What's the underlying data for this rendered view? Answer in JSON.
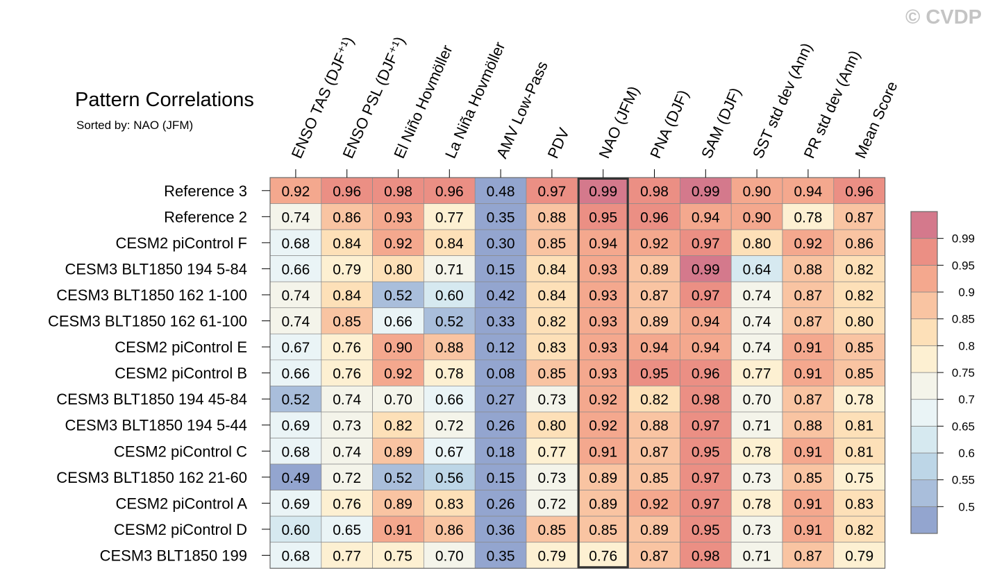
{
  "watermark": "© CVDP",
  "chart_data": {
    "type": "heatmap",
    "title": "Pattern Correlations",
    "subtitle": "Sorted by: NAO (JFM)",
    "highlight_column": "NAO (JFM)",
    "columns": [
      "ENSO TAS (DJF⁺¹)",
      "ENSO PSL (DJF⁺¹)",
      "El Niño Hovmöller",
      "La Niña Hovmöller",
      "AMV Low-Pass",
      "PDV",
      "NAO (JFM)",
      "PNA (DJF)",
      "SAM (DJF)",
      "SST std dev (Ann)",
      "PR std dev (Ann)",
      "Mean Score"
    ],
    "rows": [
      {
        "name": "Reference 3",
        "values": [
          "0.92",
          "0.96",
          "0.98",
          "0.96",
          "0.48",
          "0.97",
          "0.99",
          "0.98",
          "0.99",
          "0.90",
          "0.94",
          "0.96"
        ]
      },
      {
        "name": "Reference 2",
        "values": [
          "0.74",
          "0.86",
          "0.93",
          "0.77",
          "0.35",
          "0.88",
          "0.95",
          "0.96",
          "0.94",
          "0.90",
          "0.78",
          "0.87"
        ]
      },
      {
        "name": "CESM2 piControl F",
        "values": [
          "0.68",
          "0.84",
          "0.92",
          "0.84",
          "0.30",
          "0.85",
          "0.94",
          "0.92",
          "0.97",
          "0.80",
          "0.92",
          "0.86"
        ]
      },
      {
        "name": "CESM3 BLT1850 194 5-84",
        "values": [
          "0.66",
          "0.79",
          "0.80",
          "0.71",
          "0.15",
          "0.84",
          "0.93",
          "0.89",
          "0.99",
          "0.64",
          "0.88",
          "0.82"
        ]
      },
      {
        "name": "CESM3 BLT1850 162 1-100",
        "values": [
          "0.74",
          "0.84",
          "0.52",
          "0.60",
          "0.42",
          "0.84",
          "0.93",
          "0.87",
          "0.97",
          "0.74",
          "0.87",
          "0.82"
        ]
      },
      {
        "name": "CESM3 BLT1850 162 61-100",
        "values": [
          "0.74",
          "0.85",
          "0.66",
          "0.52",
          "0.33",
          "0.82",
          "0.93",
          "0.89",
          "0.94",
          "0.74",
          "0.87",
          "0.80"
        ]
      },
      {
        "name": "CESM2 piControl E",
        "values": [
          "0.67",
          "0.76",
          "0.90",
          "0.88",
          "0.12",
          "0.83",
          "0.93",
          "0.94",
          "0.94",
          "0.74",
          "0.91",
          "0.85"
        ]
      },
      {
        "name": "CESM2 piControl B",
        "values": [
          "0.66",
          "0.76",
          "0.92",
          "0.78",
          "0.08",
          "0.85",
          "0.93",
          "0.95",
          "0.96",
          "0.77",
          "0.91",
          "0.85"
        ]
      },
      {
        "name": "CESM3 BLT1850 194 45-84",
        "values": [
          "0.52",
          "0.74",
          "0.70",
          "0.66",
          "0.27",
          "0.73",
          "0.92",
          "0.82",
          "0.98",
          "0.70",
          "0.87",
          "0.78"
        ]
      },
      {
        "name": "CESM3 BLT1850 194 5-44",
        "values": [
          "0.69",
          "0.73",
          "0.82",
          "0.72",
          "0.26",
          "0.80",
          "0.92",
          "0.88",
          "0.97",
          "0.71",
          "0.88",
          "0.81"
        ]
      },
      {
        "name": "CESM2 piControl C",
        "values": [
          "0.68",
          "0.74",
          "0.89",
          "0.67",
          "0.18",
          "0.77",
          "0.91",
          "0.87",
          "0.95",
          "0.78",
          "0.91",
          "0.81"
        ]
      },
      {
        "name": "CESM3 BLT1850 162 21-60",
        "values": [
          "0.49",
          "0.72",
          "0.52",
          "0.56",
          "0.15",
          "0.73",
          "0.89",
          "0.85",
          "0.97",
          "0.73",
          "0.85",
          "0.75"
        ]
      },
      {
        "name": "CESM2 piControl A",
        "values": [
          "0.69",
          "0.76",
          "0.89",
          "0.83",
          "0.26",
          "0.72",
          "0.89",
          "0.92",
          "0.97",
          "0.78",
          "0.91",
          "0.83"
        ]
      },
      {
        "name": "CESM2 piControl D",
        "values": [
          "0.60",
          "0.65",
          "0.91",
          "0.86",
          "0.36",
          "0.85",
          "0.85",
          "0.89",
          "0.95",
          "0.73",
          "0.91",
          "0.82"
        ]
      },
      {
        "name": "CESM3 BLT1850 199",
        "values": [
          "0.68",
          "0.77",
          "0.75",
          "0.70",
          "0.35",
          "0.79",
          "0.76",
          "0.87",
          "0.98",
          "0.71",
          "0.87",
          "0.79"
        ]
      }
    ],
    "colorbar": {
      "levels": [
        "0.5",
        "0.55",
        "0.6",
        "0.65",
        "0.7",
        "0.75",
        "0.8",
        "0.85",
        "0.9",
        "0.95",
        "0.99"
      ],
      "colors": [
        "#93a5cf",
        "#a9bedb",
        "#bdd6e7",
        "#d6e9f0",
        "#eaf4f6",
        "#f4f4ea",
        "#fdf0d2",
        "#fde0b8",
        "#f9c4a2",
        "#f4a88e",
        "#eb8f84",
        "#d4798c"
      ]
    }
  }
}
